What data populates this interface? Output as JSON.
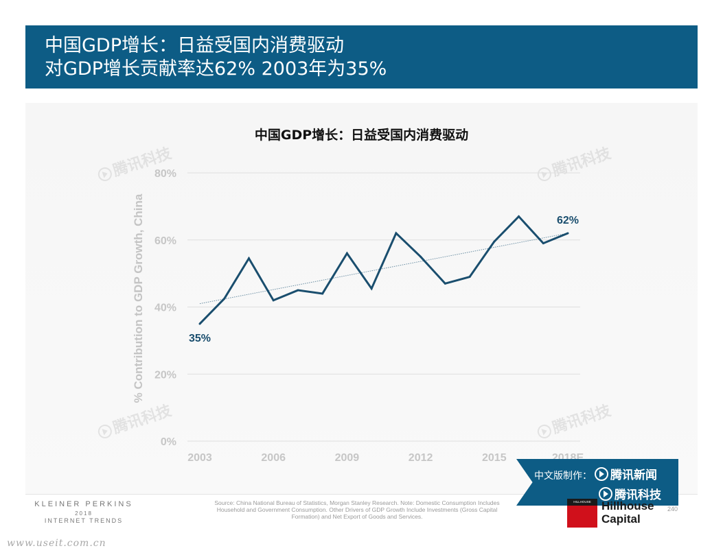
{
  "header": {
    "line1": "中国GDP增长：日益受国内消费驱动",
    "line2": "对GDP增长贡献率达62%  2003年为35%"
  },
  "chart_data": {
    "type": "line",
    "title": "中国GDP增长：日益受国内消费驱动",
    "ylabel": "% Contribution to GDP Growth, China",
    "xlabel": "",
    "x": [
      2003,
      2004,
      2005,
      2006,
      2007,
      2008,
      2009,
      2010,
      2011,
      2012,
      2013,
      2014,
      2015,
      2016,
      2017,
      2018
    ],
    "x_ticks": [
      2003,
      2006,
      2009,
      2012,
      2015,
      2018
    ],
    "x_tick_labels": [
      "2003",
      "2006",
      "2009",
      "2012",
      "2015",
      "2018E"
    ],
    "ylim": [
      0,
      80
    ],
    "y_ticks": [
      0,
      20,
      40,
      60,
      80
    ],
    "y_tick_labels": [
      "0%",
      "20%",
      "40%",
      "60%",
      "80%"
    ],
    "series": [
      {
        "values": [
          35,
          42.5,
          54.5,
          42,
          45,
          44,
          56,
          45.5,
          62,
          55,
          47,
          49,
          59.5,
          67,
          59,
          62
        ]
      }
    ],
    "trendline": {
      "start": 41,
      "end": 62
    },
    "annotations": [
      {
        "x": 2003,
        "y": 35,
        "text": "35%"
      },
      {
        "x": 2018,
        "y": 62,
        "text": "62%"
      }
    ],
    "grid": true,
    "colors": {
      "line": "#1a4e6e",
      "trend": "#6a8ea3",
      "grid": "#dedede",
      "ticks": "#c6c6c6"
    }
  },
  "footer": {
    "brand_line1": "KLEINER PERKINS",
    "brand_line2": "2018",
    "brand_line3": "INTERNET TRENDS",
    "source": "Source: China National Bureau of Statistics, Morgan Stanley Research. Note: Domestic Consumption Includes Household and Government Consumption. Other Drivers of GDP Growth Include Investments (Gross Capital Formation) and Net Export of Goods and Services.",
    "page_number": "240",
    "url": "www.useit.com.cn"
  },
  "credit": {
    "label": "中文版制作：",
    "brand1": "腾讯新闻",
    "brand2": "腾讯科技"
  },
  "partner": {
    "logo_text": "HILLHOUSE",
    "name_line1": "Hillhouse",
    "name_line2": "Capital"
  },
  "watermark": "腾讯科技",
  "colors": {
    "header_bg": "#0d5c85",
    "panel_bg": "#f7f7f7"
  }
}
